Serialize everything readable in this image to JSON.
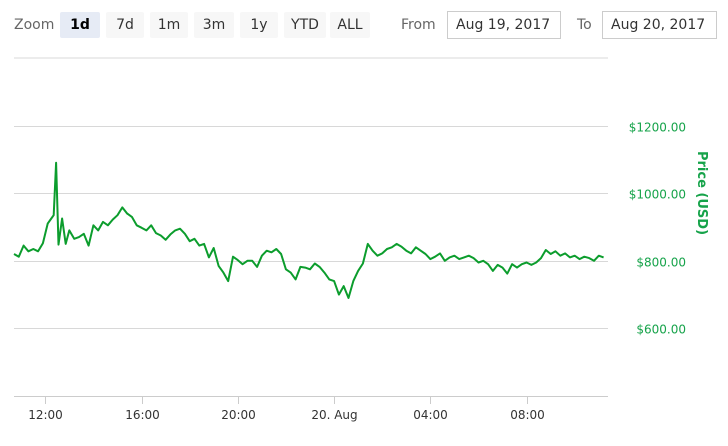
{
  "toolbar": {
    "zoom_label": "Zoom",
    "zoom_buttons": [
      "1d",
      "7d",
      "1m",
      "3m",
      "1y",
      "YTD",
      "ALL"
    ],
    "active_zoom": "1d",
    "from_label": "From",
    "from_value": "Aug 19, 2017",
    "to_label": "To",
    "to_value": "Aug 20, 2017"
  },
  "colors": {
    "line": "#0c9d2d",
    "axis_text": "#16a34a",
    "grid": "#d8d8d8"
  },
  "chart_data": {
    "type": "line",
    "title": "",
    "xlabel": "",
    "ylabel": "Price (USD)",
    "ylim": [
      400,
      1400
    ],
    "yticks": [
      "$600.00",
      "$800.00",
      "$1000.00",
      "$1200.00"
    ],
    "ytick_values": [
      600,
      800,
      1000,
      1200
    ],
    "xticks": [
      "12:00",
      "16:00",
      "20:00",
      "20. Aug",
      "04:00",
      "08:00"
    ],
    "xtick_hours": [
      12,
      16,
      20,
      24,
      28,
      32
    ],
    "x_unit": "hours since 2017-08-19 00:00",
    "xlim": [
      10.7,
      35.3
    ],
    "grid": true,
    "series": [
      {
        "x": [
          10.7,
          10.9,
          11.1,
          11.3,
          11.5,
          11.7,
          11.9,
          12.1,
          12.25,
          12.35,
          12.45,
          12.55,
          12.7,
          12.85,
          13.0,
          13.2,
          13.4,
          13.6,
          13.8,
          14.0,
          14.2,
          14.4,
          14.6,
          14.8,
          15.0,
          15.2,
          15.4,
          15.6,
          15.8,
          16.0,
          16.2,
          16.4,
          16.6,
          16.8,
          17.0,
          17.2,
          17.4,
          17.6,
          17.8,
          18.0,
          18.2,
          18.4,
          18.6,
          18.8,
          19.0,
          19.2,
          19.4,
          19.6,
          19.8,
          20.0,
          20.2,
          20.4,
          20.6,
          20.8,
          21.0,
          21.2,
          21.4,
          21.6,
          21.8,
          22.0,
          22.2,
          22.4,
          22.6,
          22.8,
          23.0,
          23.2,
          23.4,
          23.6,
          23.8,
          24.0,
          24.2,
          24.4,
          24.6,
          24.8,
          25.0,
          25.2,
          25.4,
          25.6,
          25.8,
          26.0,
          26.2,
          26.4,
          26.6,
          26.8,
          27.0,
          27.2,
          27.4,
          27.6,
          27.8,
          28.0,
          28.2,
          28.4,
          28.6,
          28.8,
          29.0,
          29.2,
          29.4,
          29.6,
          29.8,
          30.0,
          30.2,
          30.4,
          30.6,
          30.8,
          31.0,
          31.2,
          31.4,
          31.6,
          31.8,
          32.0,
          32.2,
          32.4,
          32.6,
          32.8,
          33.0,
          33.2,
          33.4,
          33.6,
          33.8,
          34.0,
          34.2,
          34.4,
          34.6,
          34.8,
          35.0,
          35.2
        ],
        "values": [
          820,
          812,
          845,
          828,
          835,
          828,
          852,
          910,
          925,
          935,
          1090,
          848,
          925,
          850,
          890,
          865,
          870,
          880,
          845,
          905,
          890,
          915,
          905,
          922,
          935,
          958,
          940,
          930,
          905,
          898,
          890,
          905,
          882,
          875,
          862,
          878,
          890,
          895,
          880,
          858,
          865,
          845,
          850,
          810,
          838,
          785,
          765,
          740,
          812,
          802,
          790,
          800,
          800,
          782,
          815,
          830,
          825,
          835,
          820,
          775,
          765,
          745,
          782,
          780,
          775,
          792,
          782,
          765,
          745,
          740,
          700,
          725,
          690,
          740,
          770,
          792,
          850,
          830,
          815,
          822,
          835,
          840,
          850,
          842,
          830,
          822,
          840,
          830,
          820,
          805,
          812,
          822,
          800,
          810,
          815,
          805,
          810,
          815,
          808,
          795,
          800,
          790,
          770,
          788,
          780,
          762,
          790,
          780,
          790,
          795,
          788,
          795,
          808,
          832,
          820,
          828,
          815,
          822,
          810,
          815,
          805,
          812,
          808,
          800,
          815,
          810
        ]
      }
    ]
  }
}
